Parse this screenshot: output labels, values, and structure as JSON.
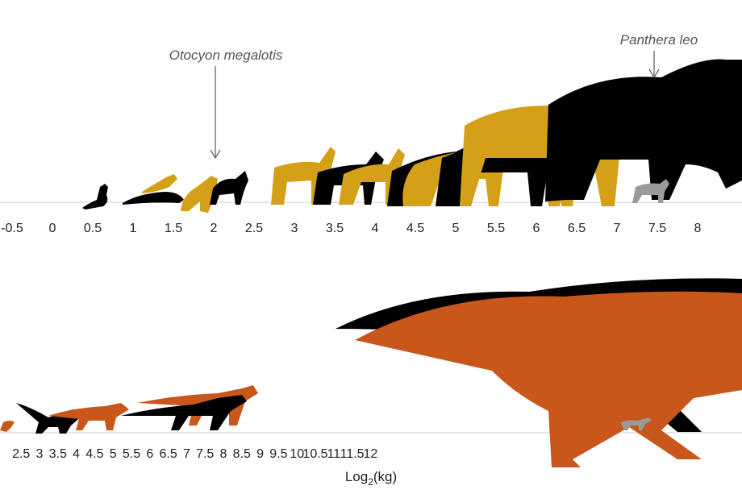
{
  "chart_data": [
    {
      "type": "scatter",
      "panel": "mammals",
      "xlabel": "",
      "x_ticks": [
        "-0.5",
        "0",
        "0.5",
        "1",
        "1.5",
        "2",
        "2.5",
        "3",
        "3.5",
        "4",
        "4.5",
        "5",
        "5.5",
        "6",
        "6.5",
        "7",
        "7.5",
        "8"
      ],
      "annotations": [
        {
          "text": "Otocyon megalotis",
          "x": 2
        },
        {
          "text": "Panthera leo",
          "x": 7.5
        }
      ],
      "colors": {
        "extant": "#000000",
        "fossil": "#d4a017",
        "highlight": "#9a9a9a"
      }
    },
    {
      "type": "scatter",
      "panel": "dinosaurs",
      "xlabel": "Log",
      "xlabel_sub": "2",
      "xlabel_unit": "(kg)",
      "x_ticks": [
        "2.5",
        "3",
        "3.5",
        "4",
        "4.5",
        "5",
        "5.5",
        "6",
        "6.5",
        "7",
        "7.5",
        "8",
        "8.5",
        "9",
        "9.5",
        "10",
        "10.5",
        "11",
        "11.5",
        "12"
      ],
      "colors": {
        "taxon_a": "#000000",
        "taxon_b": "#c9571c",
        "highlight": "#9a9a9a"
      }
    }
  ]
}
